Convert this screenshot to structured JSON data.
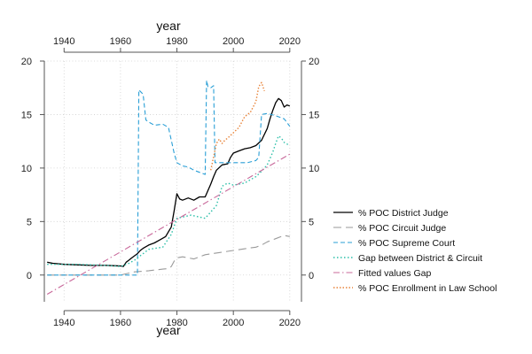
{
  "chart_data": {
    "type": "line",
    "title": "",
    "xlabel_top": "year",
    "xlabel_bottom": "year",
    "ylabel": "",
    "xlim": [
      1933,
      2021
    ],
    "ylim": [
      -2.5,
      20
    ],
    "xticks": [
      1940,
      1960,
      1980,
      2000,
      2020
    ],
    "yticks": [
      0,
      5,
      10,
      15,
      20
    ],
    "grid": true,
    "legend_position": "right",
    "series": [
      {
        "name": "% POC District Judge",
        "color": "#000000",
        "dash": "",
        "width": 1.3,
        "x": [
          1934,
          1936,
          1940,
          1945,
          1950,
          1955,
          1960,
          1961,
          1962,
          1963,
          1964,
          1965,
          1966,
          1967,
          1968,
          1970,
          1972,
          1974,
          1976,
          1978,
          1979,
          1980,
          1981,
          1982,
          1984,
          1986,
          1988,
          1990,
          1992,
          1993,
          1994,
          1996,
          1998,
          1999,
          2000,
          2002,
          2004,
          2006,
          2008,
          2010,
          2012,
          2013,
          2014,
          2015,
          2016,
          2017,
          2018,
          2019,
          2020
        ],
        "y": [
          1.2,
          1.1,
          1.0,
          0.95,
          0.9,
          0.9,
          0.85,
          0.8,
          1.2,
          1.4,
          1.6,
          1.8,
          2.0,
          2.3,
          2.5,
          2.8,
          3.0,
          3.3,
          3.6,
          4.5,
          6.0,
          7.6,
          7.1,
          7.0,
          7.2,
          7.0,
          7.3,
          7.3,
          8.5,
          9.2,
          9.8,
          10.3,
          10.4,
          11.0,
          11.4,
          11.6,
          11.8,
          11.9,
          12.1,
          12.6,
          13.7,
          14.6,
          15.4,
          16.1,
          16.5,
          16.3,
          15.7,
          15.9,
          15.8
        ]
      },
      {
        "name": "% POC Circuit Judge",
        "color": "#9a9a9a",
        "dash": "9,5",
        "width": 1.1,
        "x": [
          1934,
          1940,
          1950,
          1960,
          1965,
          1970,
          1975,
          1977,
          1978,
          1979,
          1980,
          1982,
          1984,
          1986,
          1990,
          1995,
          2000,
          2005,
          2008,
          2010,
          2012,
          2015,
          2018,
          2020
        ],
        "y": [
          0,
          0,
          0,
          0,
          0.3,
          0.4,
          0.55,
          0.6,
          0.8,
          1.3,
          1.6,
          1.7,
          1.6,
          1.5,
          1.9,
          2.1,
          2.3,
          2.5,
          2.6,
          2.8,
          3.1,
          3.4,
          3.7,
          3.6
        ]
      },
      {
        "name": "% POC Supreme Court",
        "color": "#2a9fd6",
        "dash": "5,3",
        "width": 1.1,
        "x": [
          1934,
          1966,
          1966.5,
          1968,
          1969,
          1970,
          1972,
          1975,
          1977,
          1979,
          1980,
          1982,
          1984,
          1986,
          1988,
          1990,
          1990.5,
          1991,
          1992,
          1993,
          1993.5,
          1995,
          2000,
          2005,
          2008,
          2009,
          2010,
          2012,
          2015,
          2018,
          2020
        ],
        "y": [
          0,
          0,
          17.3,
          16.9,
          14.5,
          14.3,
          14.0,
          14.1,
          13.8,
          11.4,
          10.5,
          10.2,
          10.1,
          9.8,
          9.6,
          9.4,
          18.2,
          17.6,
          17.5,
          17.7,
          10.5,
          10.5,
          10.5,
          10.5,
          10.7,
          11.0,
          15.0,
          15.1,
          14.9,
          14.6,
          13.9
        ]
      },
      {
        "name": "Gap between District & Circuit",
        "color": "#2bbfa8",
        "dash": "1.5,2.5",
        "width": 1.4,
        "x": [
          1934,
          1945,
          1955,
          1960,
          1963,
          1965,
          1970,
          1975,
          1978,
          1980,
          1985,
          1990,
          1992,
          1994,
          1996,
          1998,
          2000,
          2004,
          2008,
          2010,
          2012,
          2014,
          2015,
          2016,
          2017,
          2018,
          2020
        ],
        "y": [
          1.0,
          1.0,
          0.9,
          0.8,
          1.1,
          1.4,
          2.4,
          2.6,
          3.8,
          5.3,
          5.6,
          5.3,
          5.9,
          6.5,
          8.3,
          8.6,
          8.4,
          8.6,
          9.2,
          9.7,
          10.3,
          11.5,
          12.3,
          13.0,
          12.8,
          12.4,
          12.1
        ]
      },
      {
        "name": "Fitted values Gap",
        "color": "#c8689a",
        "dash": "7,3,1.5,3",
        "width": 1.1,
        "x": [
          1934,
          2020
        ],
        "y": [
          -1.8,
          11.3
        ]
      },
      {
        "name": "% POC Enrollment in Law School",
        "color": "#e8843a",
        "dash": "1.5,2",
        "width": 1.4,
        "x": [
          1992,
          1994,
          1995,
          1996,
          1997,
          1998,
          2000,
          2002,
          2004,
          2006,
          2008,
          2009,
          2010,
          2011
        ],
        "y": [
          9.8,
          12.3,
          12.7,
          12.3,
          12.6,
          12.8,
          13.3,
          13.8,
          14.8,
          15.2,
          16.2,
          17.6,
          18.0,
          17.2
        ]
      }
    ]
  }
}
